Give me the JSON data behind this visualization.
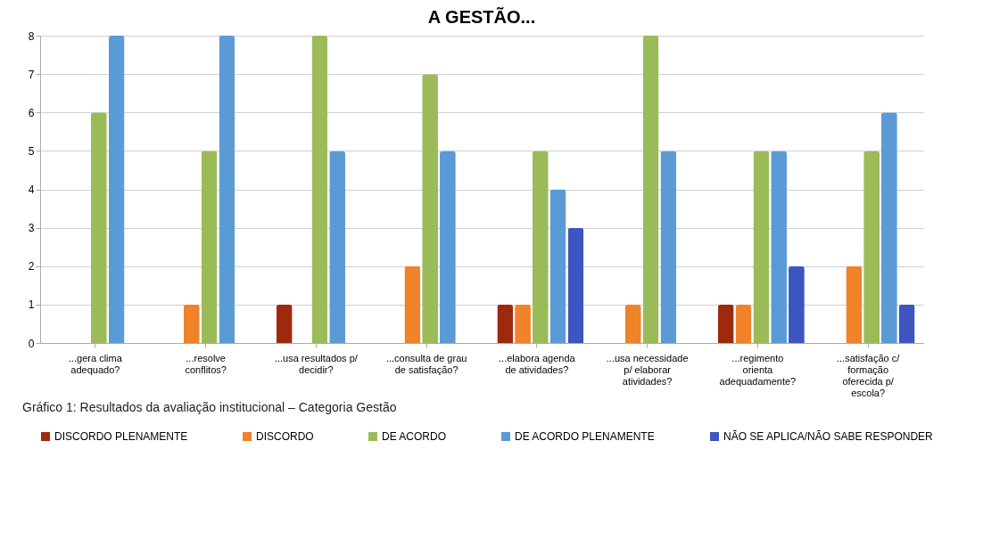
{
  "chart_data": {
    "type": "bar",
    "title": "A GESTÃO...",
    "categories": [
      "...gera clima\nadequado?",
      "...resolve\nconflitos?",
      "...usa resultados p/\ndecidir?",
      "...consulta de grau\nde satisfação?",
      "...elabora agenda\nde atividades?",
      "...usa necessidade\np/ elaborar\natividades?",
      "...regimento\norienta\nadequadamente?",
      "...satisfação c/\nformação\noferecida p/\nescola?"
    ],
    "series": [
      {
        "name": "DISCORDO PLENAMENTE",
        "color": "#9e2a0e",
        "values": [
          0,
          0,
          1,
          0,
          1,
          0,
          1,
          0
        ]
      },
      {
        "name": "DISCORDO",
        "color": "#f0822a",
        "values": [
          0,
          1,
          0,
          2,
          1,
          1,
          1,
          2
        ]
      },
      {
        "name": "DE ACORDO",
        "color": "#9bbb59",
        "values": [
          6,
          5,
          8,
          7,
          5,
          8,
          5,
          5
        ]
      },
      {
        "name": "DE ACORDO PLENAMENTE",
        "color": "#5b9bd5",
        "values": [
          8,
          8,
          5,
          5,
          4,
          5,
          5,
          6
        ]
      },
      {
        "name": "NÃO SE APLICA/NÃO SABE RESPONDER",
        "color": "#3d55c0",
        "values": [
          0,
          0,
          0,
          0,
          3,
          0,
          2,
          1
        ]
      }
    ],
    "ylim": [
      0,
      8
    ],
    "yticks": [
      0,
      1,
      2,
      3,
      4,
      5,
      6,
      7,
      8
    ],
    "grid": "y",
    "legend": "bottom",
    "annotations": [
      "Gráfico 1: Resultados da avaliação institucional – Categoria Gestão"
    ]
  }
}
